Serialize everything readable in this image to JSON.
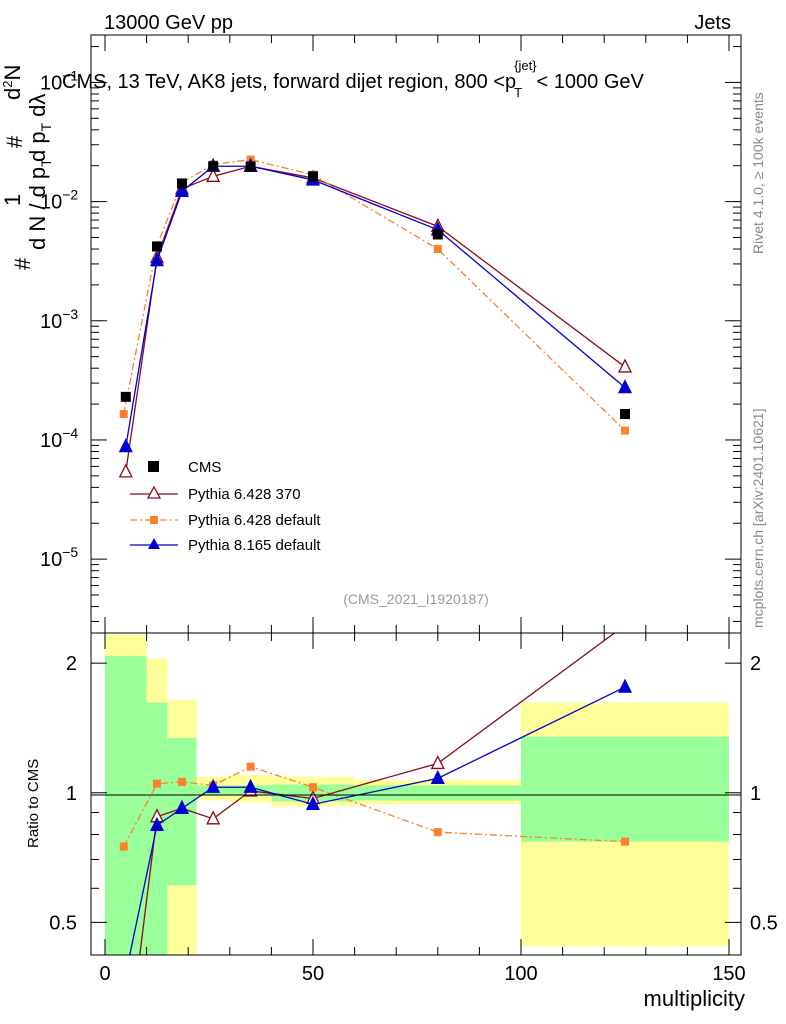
{
  "header": {
    "left": "13000 GeV pp",
    "right": "Jets",
    "subtitle": "CMS, 13 TeV, AK8 jets, forward dijet region, 800 <",
    "subtitle_pt": "p",
    "subtitle_sub": "T",
    "subtitle_sup": "{jet}",
    "subtitle_end": "< 1000 GeV",
    "analysis_id": "(CMS_2021_I1920187)"
  },
  "side_text": {
    "rivet": "Rivet 4.1.0, ≥ 100k events",
    "site": "mcplots.cern.ch [arXiv:2401.10621]"
  },
  "axes": {
    "ylabel_top_num": "1",
    "ylabel_top_den": "#",
    "ylabel_dn": "d N / d p",
    "ylabel_t1": "T",
    "ylabel_hash2": "#",
    "ylabel_d2n": "d",
    "ylabel_2": "2",
    "ylabel_n": "N",
    "ylabel_dp": "d p",
    "ylabel_t2": "T",
    "ylabel_dl": "dλ",
    "ratio_ylabel": "Ratio to CMS",
    "xlabel": "multiplicity",
    "xticks": [
      "0",
      "50",
      "100",
      "150"
    ],
    "yticks_main": [
      {
        "b": "10",
        "e": "−1",
        "v": 0.1
      },
      {
        "b": "10",
        "e": "−2",
        "v": 0.01
      },
      {
        "b": "10",
        "e": "−3",
        "v": 0.001
      },
      {
        "b": "10",
        "e": "−4",
        "v": 0.0001
      },
      {
        "b": "10",
        "e": "−5",
        "v": 1e-05
      }
    ],
    "yticks_ratio": [
      "0.5",
      "1",
      "2"
    ]
  },
  "legend": {
    "cms": "CMS",
    "p6_370": "Pythia 6.428 370",
    "p6_def": "Pythia 6.428 default",
    "p8": "Pythia 8.165 default"
  },
  "colors": {
    "cms": "#000000",
    "p6_370": "#8b0a1e",
    "p6_def": "#ff7f2a",
    "p8": "#0000d0",
    "band_inner": "#99ff99",
    "band_outer": "#ffff99"
  },
  "chart_data": {
    "type": "line",
    "x_range": [
      -2,
      150
    ],
    "main_ylim": [
      2.4e-06,
      0.25
    ],
    "ratio_ylim": [
      0.42,
      2.35
    ],
    "bin_edges": [
      0,
      10,
      15,
      22,
      30,
      40,
      60,
      100,
      150
    ],
    "cms": {
      "x": [
        5,
        12.5,
        18.5,
        26,
        35,
        50,
        80,
        125
      ],
      "y": [
        0.00023,
        0.0042,
        0.0142,
        0.0198,
        0.0197,
        0.0163,
        0.0053,
        0.000165
      ]
    },
    "series": [
      {
        "name": "Pythia 6.428 370",
        "x": [
          5,
          12.5,
          18.5,
          26,
          35,
          50,
          80,
          125
        ],
        "y": [
          5.4e-05,
          0.0034,
          0.0128,
          0.0163,
          0.0198,
          0.0158,
          0.0062,
          0.00041
        ],
        "ratio": [
          0.23,
          0.88,
          0.92,
          0.87,
          1.01,
          0.97,
          1.17,
          2.45
        ]
      },
      {
        "name": "Pythia 6.428 default",
        "x": [
          4.5,
          12.5,
          18.5,
          26,
          35,
          50,
          80,
          125
        ],
        "y": [
          0.000165,
          0.0043,
          0.0144,
          0.0205,
          0.0225,
          0.0168,
          0.004,
          0.00012
        ],
        "ratio": [
          0.75,
          1.05,
          1.06,
          1.04,
          1.15,
          1.03,
          0.81,
          0.77
        ]
      },
      {
        "name": "Pythia 8.165 default",
        "x": [
          5,
          12.5,
          18.5,
          26,
          35,
          50,
          80,
          125
        ],
        "y": [
          8.8e-05,
          0.0032,
          0.0122,
          0.0198,
          0.0198,
          0.0152,
          0.0058,
          0.000275
        ],
        "ratio": [
          0.38,
          0.84,
          0.92,
          1.03,
          1.03,
          0.94,
          1.08,
          1.76
        ]
      }
    ],
    "band_inner": [
      [
        0.4,
        2.08
      ],
      [
        0.4,
        1.62
      ],
      [
        0.61,
        1.34
      ],
      [
        0.985,
        1.04
      ],
      [
        0.985,
        1.04
      ],
      [
        0.955,
        1.045
      ],
      [
        0.96,
        1.04
      ],
      [
        0.77,
        1.35
      ]
    ],
    "band_outer": [
      [
        0.4,
        2.33
      ],
      [
        0.4,
        2.05
      ],
      [
        0.4,
        1.64
      ],
      [
        0.96,
        1.09
      ],
      [
        0.95,
        1.1
      ],
      [
        0.93,
        1.09
      ],
      [
        0.94,
        1.07
      ],
      [
        0.44,
        1.62
      ]
    ]
  }
}
